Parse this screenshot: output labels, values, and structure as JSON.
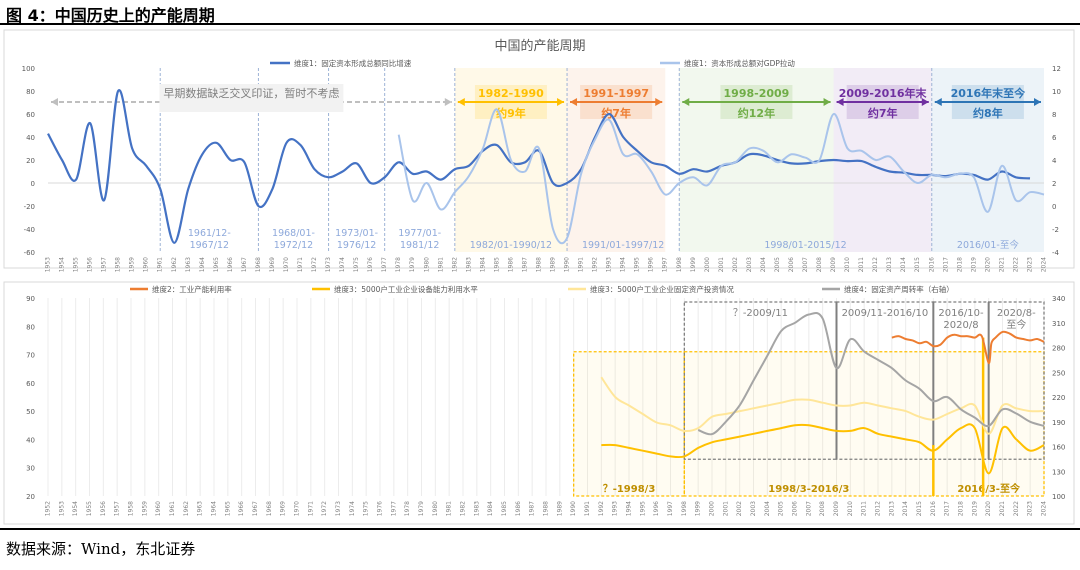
{
  "figure": {
    "label": "图 4：中国历史上的产能周期",
    "source": "数据来源：Wind，东北证券"
  },
  "chart_data": [
    {
      "type": "line",
      "title": "中国的产能周期",
      "ylim_left": [
        -60,
        100
      ],
      "ylim_right": [
        -4,
        12
      ],
      "yticks_left": [
        -60,
        -40,
        -20,
        0,
        20,
        40,
        60,
        80,
        100
      ],
      "yticks_right": [
        -4,
        -2,
        0,
        2,
        4,
        6,
        8,
        10,
        12
      ],
      "x_years": [
        1953,
        2024
      ],
      "series": [
        {
          "name": "维度1：固定资本形成总额同比增速",
          "color": "#4472C4",
          "axis": "left",
          "x": [
            1953,
            1954,
            1955,
            1956,
            1957,
            1958,
            1959,
            1960,
            1961,
            1962,
            1963,
            1964,
            1965,
            1966,
            1967,
            1968,
            1969,
            1970,
            1971,
            1972,
            1973,
            1974,
            1975,
            1976,
            1977,
            1978,
            1979,
            1980,
            1981,
            1982,
            1983,
            1984,
            1985,
            1986,
            1987,
            1988,
            1989,
            1990,
            1991,
            1992,
            1993,
            1994,
            1995,
            1996,
            1997,
            1998,
            1999,
            2000,
            2001,
            2002,
            2003,
            2004,
            2005,
            2006,
            2007,
            2008,
            2009,
            2010,
            2011,
            2012,
            2013,
            2014,
            2015,
            2016,
            2017,
            2018,
            2019,
            2020,
            2021,
            2022,
            2023
          ],
          "values": [
            43,
            20,
            3,
            52,
            -15,
            80,
            30,
            15,
            -5,
            -52,
            -5,
            25,
            35,
            20,
            18,
            -20,
            -5,
            35,
            33,
            12,
            5,
            10,
            17,
            0,
            5,
            18,
            8,
            10,
            3,
            12,
            15,
            28,
            33,
            18,
            18,
            28,
            0,
            0,
            12,
            40,
            60,
            40,
            28,
            18,
            15,
            8,
            12,
            10,
            15,
            18,
            25,
            24,
            20,
            17,
            17,
            19,
            20,
            19,
            19,
            14,
            10,
            9,
            7,
            7,
            6,
            8,
            7,
            3,
            10,
            5,
            4
          ]
        },
        {
          "name": "维度1：资本形成总额对GDP拉动",
          "color": "#A9C4EB",
          "axis": "right",
          "x": [
            1978,
            1979,
            1980,
            1981,
            1982,
            1983,
            1984,
            1985,
            1986,
            1987,
            1988,
            1989,
            1990,
            1991,
            1992,
            1993,
            1994,
            1995,
            1996,
            1997,
            1998,
            1999,
            2000,
            2001,
            2002,
            2003,
            2004,
            2005,
            2006,
            2007,
            2008,
            2009,
            2010,
            2011,
            2012,
            2013,
            2014,
            2015,
            2016,
            2017,
            2018,
            2019,
            2020,
            2021,
            2022,
            2023,
            2024
          ],
          "values": [
            6.2,
            0.5,
            2.0,
            -0.3,
            1.2,
            2.6,
            5.0,
            8.4,
            4.0,
            3.0,
            5.0,
            -2.0,
            -2.8,
            2.8,
            5.8,
            7.5,
            4.5,
            4.5,
            3.0,
            1.0,
            2.0,
            2.5,
            1.8,
            3.5,
            3.8,
            5.0,
            4.8,
            3.8,
            4.5,
            4.2,
            4.0,
            8.0,
            5.0,
            4.8,
            4.0,
            4.3,
            3.0,
            2.0,
            2.7,
            2.5,
            2.8,
            2.5,
            -0.5,
            3.5,
            0.5,
            1.2,
            1.0
          ]
        }
      ],
      "regions": [
        {
          "label": "早期数据缺乏交叉印证，暂时不考虑",
          "from": 1953,
          "to": 1982,
          "color": ""
        },
        {
          "label": "1982-1990",
          "sub": "约9年",
          "from": 1982,
          "to": 1990,
          "color": "#FFC000"
        },
        {
          "label": "1991-1997",
          "sub": "约7年",
          "from": 1990,
          "to": 1997,
          "color": "#ED7D31"
        },
        {
          "label": "1998-2009",
          "sub": "约12年",
          "from": 1998,
          "to": 2009,
          "color": "#70AD47"
        },
        {
          "label": "2009-2016年末",
          "sub": "约7年",
          "from": 2009,
          "to": 2016,
          "color": "#7030A0"
        },
        {
          "label": "2016年末至今",
          "sub": "约8年",
          "from": 2016,
          "to": 2024,
          "color": "#2E75B6"
        }
      ],
      "cycle_labels": [
        {
          "text": "1961/12-1967/12",
          "from": 1961,
          "to": 1968
        },
        {
          "text": "1968/01-1972/12",
          "from": 1968,
          "to": 1973
        },
        {
          "text": "1973/01-1976/12",
          "from": 1973,
          "to": 1977
        },
        {
          "text": "1977/01-1981/12",
          "from": 1977,
          "to": 1982
        },
        {
          "text": "1982/01-1990/12",
          "from": 1982,
          "to": 1990
        },
        {
          "text": "1991/01-1997/12",
          "from": 1990,
          "to": 1998
        },
        {
          "text": "1998/01-2015/12",
          "from": 1998,
          "to": 2016
        },
        {
          "text": "2016/01-至今",
          "from": 2016,
          "to": 2024
        }
      ]
    },
    {
      "type": "line",
      "ylim_left": [
        20,
        90
      ],
      "ylim_right": [
        100,
        340
      ],
      "yticks_left": [
        20,
        30,
        40,
        50,
        60,
        70,
        80,
        90
      ],
      "yticks_right": [
        100,
        130,
        160,
        190,
        220,
        250,
        280,
        310,
        340
      ],
      "x_years": [
        1952,
        2024
      ],
      "series": [
        {
          "name": "维度2：工业产能利用率",
          "color": "#ED7D31",
          "axis": "left",
          "x": [
            2013.0,
            2013.5,
            2014.0,
            2014.5,
            2015.0,
            2015.5,
            2016.0,
            2016.5,
            2017.0,
            2017.5,
            2018.0,
            2018.5,
            2019.0,
            2019.5,
            2020.0,
            2020.2,
            2020.5,
            2021.0,
            2021.5,
            2022.0,
            2022.5,
            2023.0,
            2023.5,
            2024.0
          ],
          "values": [
            76,
            76.5,
            75.5,
            75,
            74,
            74.5,
            73,
            73.5,
            76,
            77,
            76.5,
            76.5,
            76,
            76.5,
            67,
            74,
            76,
            78,
            77.5,
            76,
            75.5,
            75,
            75.5,
            74.5
          ]
        },
        {
          "name": "维度3：5000户工业企业设备能力利用水平",
          "color": "#FFC000",
          "axis": "left",
          "x": [
            1992,
            1993,
            1994,
            1995,
            1996,
            1997,
            1998,
            1999,
            2000,
            2001,
            2002,
            2003,
            2004,
            2005,
            2006,
            2007,
            2008,
            2009,
            2010,
            2011,
            2012,
            2013,
            2014,
            2015,
            2016,
            2017,
            2018,
            2019,
            2020,
            2021,
            2022,
            2023,
            2024
          ],
          "values": [
            38,
            38,
            37,
            36,
            35,
            34,
            34,
            37,
            39,
            40,
            41,
            42,
            43,
            44,
            45,
            45,
            44,
            43,
            43,
            44,
            42,
            41,
            40,
            39,
            36,
            40,
            44,
            44,
            28,
            44,
            40,
            36,
            38
          ]
        },
        {
          "name": "维度3：5000户工业企业固定资产投资情况",
          "color": "#FFE699",
          "axis": "left",
          "x": [
            1992,
            1993,
            1994,
            1995,
            1996,
            1997,
            1998,
            1999,
            2000,
            2001,
            2002,
            2003,
            2004,
            2005,
            2006,
            2007,
            2008,
            2009,
            2010,
            2011,
            2012,
            2013,
            2014,
            2015,
            2016,
            2017,
            2018,
            2019,
            2020,
            2021,
            2022,
            2023,
            2024
          ],
          "values": [
            62,
            55,
            52,
            49,
            46,
            45,
            43,
            44,
            48,
            49,
            50,
            51,
            52,
            53,
            54,
            54,
            53,
            52,
            52,
            53,
            52,
            51,
            50,
            48,
            47,
            49,
            51,
            52,
            42,
            52,
            51,
            50,
            50
          ]
        },
        {
          "name": "维度4：固定资产周转率（右轴）",
          "color": "#A5A5A5",
          "axis": "right",
          "x": [
            1999,
            2000,
            2001,
            2002,
            2003,
            2004,
            2005,
            2006,
            2007,
            2008,
            2009,
            2010,
            2011,
            2012,
            2013,
            2014,
            2015,
            2016,
            2017,
            2018,
            2019,
            2020,
            2021,
            2022,
            2023,
            2024
          ],
          "values": [
            180,
            175,
            190,
            210,
            240,
            270,
            300,
            310,
            320,
            315,
            255,
            290,
            275,
            265,
            255,
            240,
            230,
            215,
            220,
            205,
            195,
            185,
            205,
            200,
            190,
            185
          ]
        }
      ],
      "boxes": [
        {
          "label": "？-1998/3",
          "from": 1990,
          "to": 1998,
          "color": "#FFC000"
        },
        {
          "label": "1998/3-2016/3",
          "from": 1998,
          "to": 2016,
          "color": "#FFC000"
        },
        {
          "label": "2016/3-至今",
          "from": 2016,
          "to": 2024,
          "color": "#FFC000"
        },
        {
          "label": "？-2009/11",
          "from": 1998,
          "to": 2009,
          "color": "#7F7F7F"
        },
        {
          "label": "2009/11-2016/10",
          "from": 2009,
          "to": 2016,
          "color": "#7F7F7F"
        },
        {
          "label": "2016/10-2020/8",
          "from": 2016,
          "to": 2020,
          "color": "#7F7F7F"
        },
        {
          "label": "2020/8-至今",
          "from": 2020,
          "to": 2024,
          "color": "#7F7F7F"
        }
      ]
    }
  ]
}
